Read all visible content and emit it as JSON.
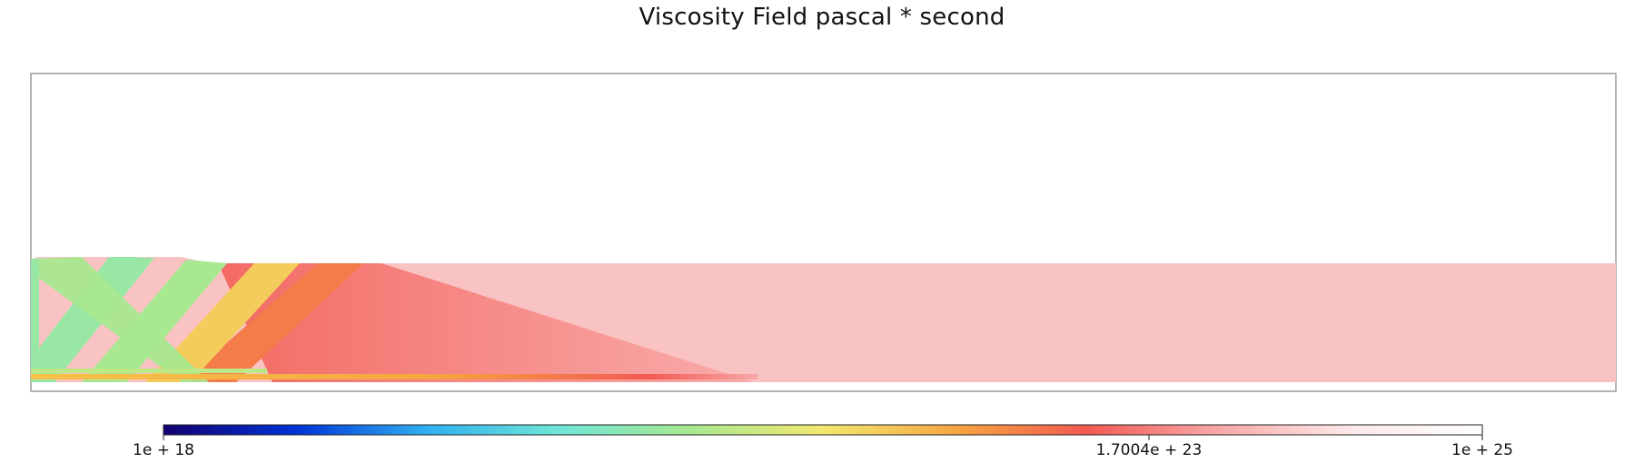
{
  "chart_data": {
    "type": "heatmap",
    "title": "Viscosity Field pascal * second",
    "colorbar": {
      "scale": "log",
      "min": 1e+18,
      "max": 1e+25,
      "ticks": [
        {
          "value": 1e+18,
          "label": "1e + 18"
        },
        {
          "value": 1.7004e+23,
          "label": "1.7004e + 23"
        },
        {
          "value": 1e+25,
          "label": "1e + 25"
        }
      ],
      "colormap": [
        "#130071",
        "#0033d6",
        "#2fb0f0",
        "#6fe6d6",
        "#a8e890",
        "#f2e870",
        "#f6a640",
        "#f25a52",
        "#f8a8a8",
        "#fde8e8",
        "#ffffff"
      ]
    },
    "background_field": {
      "log10_viscosity": 23.9
    },
    "features": [
      {
        "name": "left-wall",
        "log10_viscosity": 20.6
      },
      {
        "name": "band-1",
        "log10_viscosity": 20.6
      },
      {
        "name": "band-2",
        "log10_viscosity": 20.8
      },
      {
        "name": "band-3",
        "log10_viscosity": 21.8
      },
      {
        "name": "band-4",
        "log10_viscosity": 22.6
      },
      {
        "name": "bottom-strip",
        "log10_viscosity": 21.0
      }
    ]
  }
}
